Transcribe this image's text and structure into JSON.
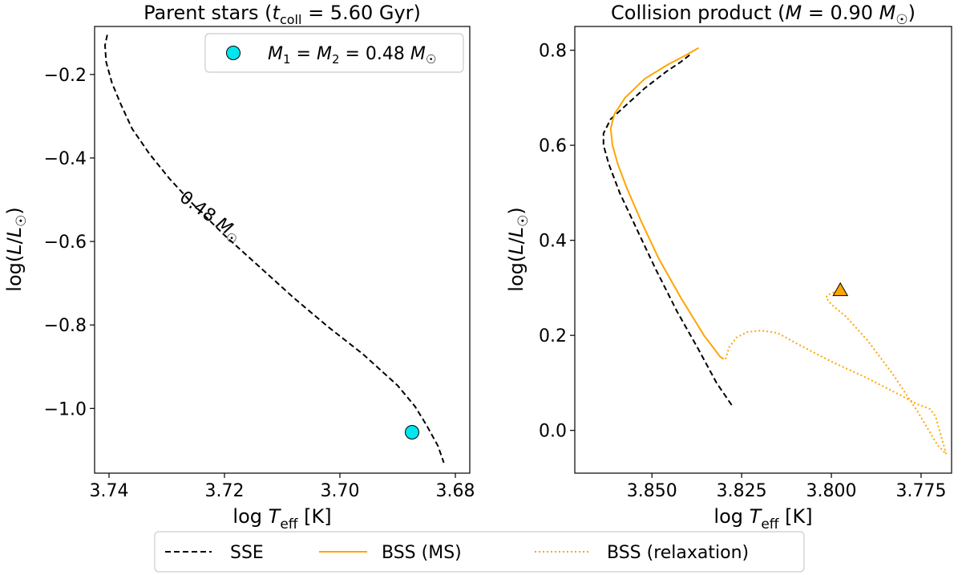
{
  "chart_data": [
    {
      "type": "line",
      "title": "Parent stars (t_coll = 5.60 Gyr)",
      "xlabel": "log T_eff [K]",
      "ylabel": "log(L/L_☉)",
      "x_axis_inverted": true,
      "xlim": [
        3.7425,
        3.6775
      ],
      "ylim": [
        -1.155,
        -0.085
      ],
      "xticks": [
        3.74,
        3.72,
        3.7,
        3.68
      ],
      "xtick_labels": [
        "3.74",
        "3.72",
        "3.70",
        "3.68"
      ],
      "yticks": [
        -0.2,
        -0.4,
        -0.6,
        -0.8,
        -1.0
      ],
      "ytick_labels": [
        "−0.2",
        "−0.4",
        "−0.6",
        "−0.8",
        "−1.0"
      ],
      "grid": false,
      "legend_location": "top-right",
      "legend": [
        {
          "label": "M₁ = M₂ = 0.48 M☉",
          "marker": "circle",
          "color": "#00e5ee"
        }
      ],
      "annotations": [
        {
          "text": "0.48 M☉",
          "x": 3.723,
          "y": -0.55,
          "rotation_deg": 36
        }
      ],
      "series": [
        {
          "name": "SSE",
          "style": "dashed",
          "color": "#000000",
          "x": [
            3.7403,
            3.7407,
            3.7405,
            3.7395,
            3.738,
            3.736,
            3.733,
            3.7295,
            3.7255,
            3.72,
            3.714,
            3.708,
            3.702,
            3.696,
            3.69,
            3.687,
            3.685,
            3.683,
            3.682
          ],
          "y": [
            -0.105,
            -0.13,
            -0.17,
            -0.22,
            -0.27,
            -0.33,
            -0.39,
            -0.45,
            -0.51,
            -0.585,
            -0.66,
            -0.735,
            -0.805,
            -0.87,
            -0.945,
            -0.995,
            -1.04,
            -1.09,
            -1.13
          ]
        }
      ],
      "markers": [
        {
          "x": 3.6875,
          "y": -1.057,
          "shape": "circle",
          "color": "#00e5ee"
        }
      ]
    },
    {
      "type": "line",
      "title": "Collision product (M = 0.90 M☉)",
      "xlabel": "log T_eff [K]",
      "ylabel": "log(L/L_☉)",
      "x_axis_inverted": true,
      "xlim": [
        3.8715,
        3.7665
      ],
      "ylim": [
        -0.09,
        0.85
      ],
      "xticks": [
        3.85,
        3.825,
        3.8,
        3.775
      ],
      "xtick_labels": [
        "3.850",
        "3.825",
        "3.800",
        "3.775"
      ],
      "yticks": [
        0.0,
        0.2,
        0.4,
        0.6,
        0.8
      ],
      "ytick_labels": [
        "0.0",
        "0.2",
        "0.4",
        "0.6",
        "0.8"
      ],
      "grid": false,
      "series": [
        {
          "name": "SSE",
          "style": "dashed",
          "color": "#000000",
          "x": [
            3.8395,
            3.842,
            3.846,
            3.852,
            3.8615,
            3.8635,
            3.8635,
            3.862,
            3.859,
            3.854,
            3.849,
            3.843,
            3.837,
            3.832,
            3.8275
          ],
          "y": [
            0.79,
            0.775,
            0.755,
            0.72,
            0.655,
            0.625,
            0.6,
            0.56,
            0.5,
            0.42,
            0.34,
            0.25,
            0.17,
            0.1,
            0.05
          ]
        },
        {
          "name": "BSS (MS)",
          "style": "solid",
          "color": "#ffa500",
          "x": [
            3.837,
            3.8405,
            3.8455,
            3.852,
            3.8575,
            3.8605,
            3.8615,
            3.861,
            3.8595,
            3.857,
            3.853,
            3.848,
            3.842,
            3.8355,
            3.831,
            3.83
          ],
          "y": [
            0.805,
            0.79,
            0.77,
            0.74,
            0.7,
            0.665,
            0.635,
            0.6,
            0.56,
            0.51,
            0.44,
            0.36,
            0.28,
            0.2,
            0.155,
            0.15
          ]
        },
        {
          "name": "BSS (relaxation)",
          "style": "dotted",
          "color": "#ffa500",
          "x": [
            3.8295,
            3.8285,
            3.8265,
            3.8235,
            3.8195,
            3.815,
            3.809,
            3.8,
            3.79,
            3.781,
            3.776,
            3.7725,
            3.771,
            3.768,
            3.7705,
            3.776,
            3.783,
            3.79,
            3.796,
            3.8,
            3.8015,
            3.801,
            3.7995,
            3.798
          ],
          "y": [
            0.15,
            0.175,
            0.195,
            0.207,
            0.21,
            0.205,
            0.18,
            0.145,
            0.11,
            0.075,
            0.055,
            0.045,
            0.03,
            -0.05,
            -0.03,
            0.04,
            0.12,
            0.19,
            0.24,
            0.265,
            0.28,
            0.285,
            0.29,
            0.295
          ]
        }
      ],
      "markers": [
        {
          "x": 3.7975,
          "y": 0.295,
          "shape": "triangle",
          "color": "#ffa500"
        }
      ]
    }
  ],
  "text": {
    "left_title_prefix": "Parent stars (",
    "left_title_t": "t",
    "left_title_sub": "coll",
    "left_title_rest": " = 5.60 Gyr)",
    "right_title_prefix": "Collision product (",
    "right_title_m": "M",
    "right_title_rest": " = 0.90 ",
    "right_title_msun": "M",
    "right_title_sun": "☉",
    "right_title_close": ")",
    "xlabel_log": "log ",
    "xlabel_T": "T",
    "xlabel_sub": "eff",
    "xlabel_unit": " [K]",
    "ylabel_prefix": "log(",
    "ylabel_L": "L",
    "ylabel_slash": "/",
    "ylabel_L2": "L",
    "ylabel_sun": "☉",
    "ylabel_close": ")",
    "legend_m1": "M",
    "legend_sub1": "1",
    "legend_eq": " = ",
    "legend_m2": "M",
    "legend_sub2": "2",
    "legend_val": " = 0.48 ",
    "legend_msun": "M",
    "legend_sun": "☉",
    "annot_val": "0.48 ",
    "annot_m": "M",
    "annot_sun": "☉",
    "bottom_legend": [
      "SSE",
      "BSS (MS)",
      "BSS (relaxation)"
    ]
  }
}
